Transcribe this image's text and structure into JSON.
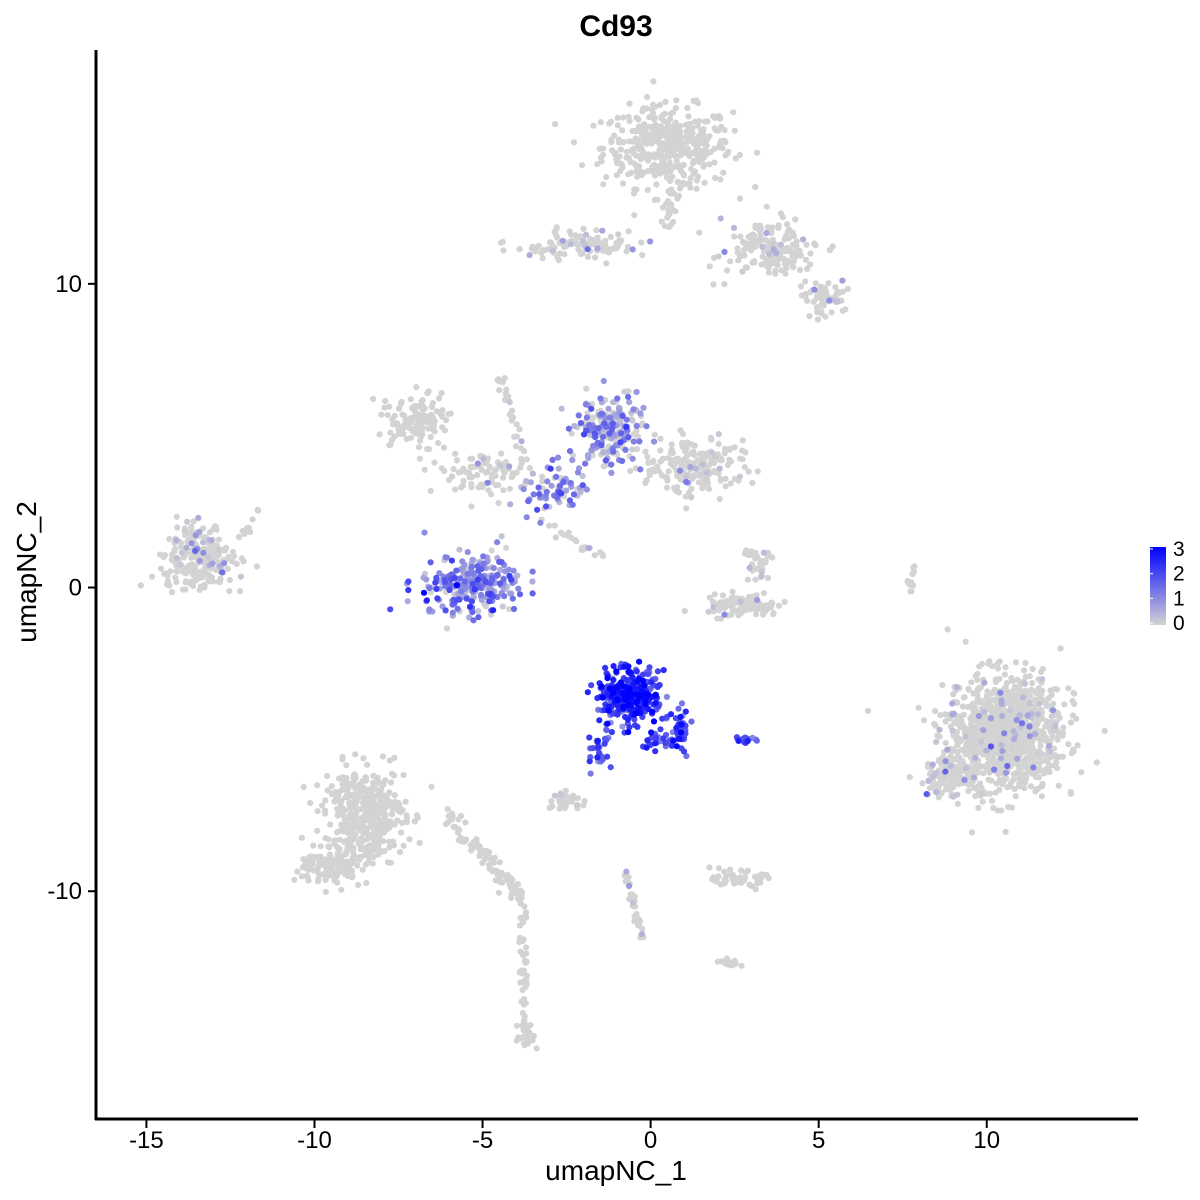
{
  "chart_data": {
    "type": "scatter",
    "title": "Cd93",
    "xlabel": "umapNC_1",
    "ylabel": "umapNC_2",
    "xlim": [
      -16.5,
      14.5
    ],
    "ylim": [
      -17.5,
      17.7
    ],
    "x_ticks": [
      -15,
      -10,
      -5,
      0,
      5,
      10
    ],
    "y_ticks": [
      -10,
      0,
      10
    ],
    "x_tick_labels": [
      "-15",
      "-10",
      "-5",
      "0",
      "5",
      "10"
    ],
    "y_tick_labels": [
      "-10",
      "0",
      "10"
    ],
    "grid": false,
    "legend": {
      "position": "right",
      "type": "colorbar",
      "range": [
        0,
        3
      ],
      "ticks": [
        "0",
        "1",
        "2",
        "3"
      ],
      "low_color": "#d3d3d3",
      "high_color": "#0000ff"
    },
    "clusters": [
      {
        "cx": 0.5,
        "cy": 14.5,
        "sx": 1.6,
        "sy": 1.1,
        "n": 420,
        "expr": 0.0
      },
      {
        "cx": 3.5,
        "cy": 11.2,
        "sx": 1.2,
        "sy": 0.8,
        "n": 160,
        "expr": 0.05
      },
      {
        "cx": -2.0,
        "cy": 11.3,
        "sx": 1.4,
        "sy": 0.4,
        "n": 110,
        "expr": 0.1
      },
      {
        "cx": 5.2,
        "cy": 9.5,
        "sx": 0.6,
        "sy": 0.5,
        "n": 60,
        "expr": 0.1
      },
      {
        "cx": -7.0,
        "cy": 5.5,
        "sx": 0.8,
        "sy": 0.7,
        "n": 130,
        "expr": 0.0
      },
      {
        "cx": -5.0,
        "cy": 3.8,
        "sx": 1.2,
        "sy": 0.6,
        "n": 90,
        "expr": 0.05
      },
      {
        "cx": -1.2,
        "cy": 5.2,
        "sx": 0.8,
        "sy": 0.9,
        "n": 220,
        "expr": 0.75
      },
      {
        "cx": 1.3,
        "cy": 4.0,
        "sx": 1.2,
        "sy": 0.7,
        "n": 200,
        "expr": 0.12
      },
      {
        "cx": -2.8,
        "cy": 3.2,
        "sx": 0.9,
        "sy": 0.7,
        "n": 70,
        "expr": 0.9
      },
      {
        "cx": -5.3,
        "cy": 0.1,
        "sx": 1.2,
        "sy": 0.8,
        "n": 260,
        "expr": 1.0
      },
      {
        "cx": -13.5,
        "cy": 1.0,
        "sx": 0.9,
        "sy": 0.9,
        "n": 240,
        "expr": 0.12
      },
      {
        "cx": 2.7,
        "cy": -0.6,
        "sx": 0.9,
        "sy": 0.3,
        "n": 110,
        "expr": 0.05
      },
      {
        "cx": 3.2,
        "cy": 0.8,
        "sx": 0.4,
        "sy": 0.6,
        "n": 35,
        "expr": 0.1
      },
      {
        "cx": -0.6,
        "cy": -3.6,
        "sx": 0.7,
        "sy": 0.7,
        "n": 320,
        "expr": 2.3
      },
      {
        "cx": 0.9,
        "cy": -4.8,
        "sx": 0.3,
        "sy": 0.6,
        "n": 40,
        "expr": 1.7
      },
      {
        "cx": -1.6,
        "cy": -5.5,
        "sx": 0.3,
        "sy": 0.6,
        "n": 20,
        "expr": 1.5
      },
      {
        "cx": 2.8,
        "cy": -5.0,
        "sx": 0.3,
        "sy": 0.1,
        "n": 15,
        "expr": 1.5
      },
      {
        "cx": 10.5,
        "cy": -4.8,
        "sx": 1.4,
        "sy": 1.6,
        "n": 1100,
        "expr": 0.04
      },
      {
        "cx": 8.8,
        "cy": -6.2,
        "sx": 0.6,
        "sy": 0.6,
        "n": 110,
        "expr": 0.15
      },
      {
        "cx": -8.5,
        "cy": -7.5,
        "sx": 1.0,
        "sy": 1.3,
        "n": 420,
        "expr": 0.0
      },
      {
        "cx": -9.5,
        "cy": -9.2,
        "sx": 0.8,
        "sy": 0.5,
        "n": 110,
        "expr": 0.0
      },
      {
        "cx": 2.6,
        "cy": -9.6,
        "sx": 0.6,
        "sy": 0.2,
        "n": 60,
        "expr": 0.0
      },
      {
        "cx": -2.5,
        "cy": -7.0,
        "sx": 0.4,
        "sy": 0.25,
        "n": 35,
        "expr": 0.1
      },
      {
        "cx": 2.3,
        "cy": -12.4,
        "sx": 0.3,
        "sy": 0.15,
        "n": 15,
        "expr": 0.0
      },
      {
        "cx": -3.7,
        "cy": -14.8,
        "sx": 0.2,
        "sy": 0.4,
        "n": 25,
        "expr": 0.05
      }
    ],
    "paths": [
      {
        "from": [
          -6.0,
          -7.5
        ],
        "to": [
          -3.8,
          -10.3
        ],
        "n": 90,
        "spread": 0.25,
        "expr": 0.0
      },
      {
        "from": [
          -3.8,
          -10.3
        ],
        "to": [
          -3.8,
          -15.0
        ],
        "n": 45,
        "spread": 0.15,
        "expr": 0.0
      },
      {
        "from": [
          -0.8,
          -9.2
        ],
        "to": [
          -0.2,
          -11.8
        ],
        "n": 35,
        "spread": 0.1,
        "expr": 0.05
      },
      {
        "from": [
          0.5,
          12.0
        ],
        "to": [
          0.8,
          13.4
        ],
        "n": 30,
        "spread": 0.2,
        "expr": 0.0
      },
      {
        "from": [
          -4.5,
          7.0
        ],
        "to": [
          -3.7,
          4.0
        ],
        "n": 30,
        "spread": 0.2,
        "expr": 0.05
      },
      {
        "from": [
          -3.0,
          2.0
        ],
        "to": [
          -1.5,
          1.0
        ],
        "n": 20,
        "spread": 0.15,
        "expr": 0.05
      },
      {
        "from": [
          7.8,
          0.8
        ],
        "to": [
          7.7,
          -0.4
        ],
        "n": 12,
        "spread": 0.1,
        "expr": 0.0
      },
      {
        "from": [
          -0.2,
          -5.2
        ],
        "to": [
          0.9,
          -5.0
        ],
        "n": 30,
        "spread": 0.25,
        "expr": 1.7
      },
      {
        "from": [
          -1.7,
          -5.3
        ],
        "to": [
          -0.6,
          -3.6
        ],
        "n": 25,
        "spread": 0.2,
        "expr": 1.4
      },
      {
        "from": [
          -12.2,
          1.6
        ],
        "to": [
          -11.5,
          2.8
        ],
        "n": 10,
        "spread": 0.15,
        "expr": 0.05
      }
    ]
  }
}
